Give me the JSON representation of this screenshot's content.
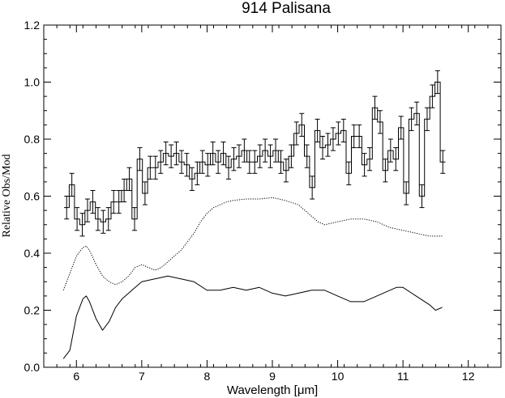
{
  "chart_data": {
    "type": "line",
    "title": "914 Palisana",
    "xlabel": "Wavelength [μm]",
    "ylabel": "Relative Obs/Mod",
    "xlim": [
      5.5,
      12.5
    ],
    "ylim": [
      0.0,
      1.2
    ],
    "xticks": [
      6,
      7,
      8,
      9,
      10,
      11,
      12
    ],
    "yticks": [
      0.0,
      0.2,
      0.4,
      0.6,
      0.8,
      1.0,
      1.2
    ],
    "ytick_labels": [
      "0.0",
      "0.2",
      "0.4",
      "0.6",
      "0.8",
      "1.0",
      "1.2"
    ],
    "grid": false,
    "series": [
      {
        "style": "histogram-with-errorbars",
        "x": [
          5.85,
          5.93,
          6.01,
          6.09,
          6.17,
          6.25,
          6.33,
          6.41,
          6.49,
          6.57,
          6.65,
          6.73,
          6.81,
          6.89,
          6.97,
          7.05,
          7.13,
          7.21,
          7.29,
          7.37,
          7.45,
          7.53,
          7.61,
          7.69,
          7.77,
          7.85,
          7.93,
          8.01,
          8.09,
          8.17,
          8.25,
          8.33,
          8.41,
          8.49,
          8.57,
          8.65,
          8.73,
          8.81,
          8.89,
          8.97,
          9.05,
          9.13,
          9.21,
          9.29,
          9.37,
          9.45,
          9.53,
          9.61,
          9.69,
          9.77,
          9.85,
          9.93,
          10.01,
          10.09,
          10.17,
          10.25,
          10.33,
          10.41,
          10.49,
          10.57,
          10.65,
          10.73,
          10.81,
          10.89,
          10.97,
          11.05,
          11.13,
          11.21,
          11.29,
          11.37,
          11.45,
          11.53,
          11.61
        ],
        "y": [
          0.56,
          0.64,
          0.52,
          0.5,
          0.55,
          0.58,
          0.52,
          0.51,
          0.52,
          0.58,
          0.58,
          0.62,
          0.66,
          0.52,
          0.73,
          0.61,
          0.7,
          0.7,
          0.72,
          0.75,
          0.74,
          0.75,
          0.72,
          0.71,
          0.66,
          0.68,
          0.72,
          0.71,
          0.75,
          0.72,
          0.75,
          0.7,
          0.73,
          0.74,
          0.76,
          0.72,
          0.72,
          0.74,
          0.76,
          0.74,
          0.76,
          0.72,
          0.69,
          0.74,
          0.82,
          0.85,
          0.74,
          0.63,
          0.83,
          0.77,
          0.78,
          0.8,
          0.82,
          0.83,
          0.68,
          0.81,
          0.81,
          0.71,
          0.73,
          0.91,
          0.86,
          0.69,
          0.76,
          0.73,
          0.84,
          0.61,
          0.87,
          0.89,
          0.6,
          0.87,
          0.95,
          1.0,
          0.72
        ],
        "err": 0.04
      },
      {
        "style": "dotted",
        "x": [
          5.8,
          5.9,
          6.0,
          6.1,
          6.15,
          6.2,
          6.3,
          6.4,
          6.5,
          6.6,
          6.7,
          6.8,
          6.9,
          7.0,
          7.1,
          7.2,
          7.3,
          7.4,
          7.5,
          7.6,
          7.7,
          7.8,
          7.9,
          8.0,
          8.1,
          8.2,
          8.3,
          8.4,
          8.6,
          8.8,
          9.0,
          9.1,
          9.2,
          9.4,
          9.6,
          9.7,
          9.8,
          10.0,
          10.2,
          10.4,
          10.6,
          10.8,
          11.0,
          11.2,
          11.4,
          11.6
        ],
        "y": [
          0.27,
          0.33,
          0.39,
          0.42,
          0.425,
          0.41,
          0.36,
          0.32,
          0.3,
          0.29,
          0.3,
          0.32,
          0.35,
          0.36,
          0.35,
          0.34,
          0.35,
          0.37,
          0.39,
          0.41,
          0.44,
          0.47,
          0.51,
          0.54,
          0.56,
          0.57,
          0.58,
          0.585,
          0.59,
          0.59,
          0.595,
          0.59,
          0.585,
          0.57,
          0.53,
          0.51,
          0.5,
          0.51,
          0.52,
          0.52,
          0.51,
          0.49,
          0.48,
          0.47,
          0.46,
          0.46
        ]
      },
      {
        "style": "solid",
        "x": [
          5.8,
          5.9,
          6.0,
          6.1,
          6.15,
          6.2,
          6.3,
          6.4,
          6.5,
          6.6,
          6.7,
          6.8,
          6.9,
          7.0,
          7.2,
          7.4,
          7.6,
          7.8,
          8.0,
          8.2,
          8.4,
          8.6,
          8.8,
          9.0,
          9.2,
          9.4,
          9.6,
          9.8,
          10.0,
          10.2,
          10.4,
          10.6,
          10.8,
          10.9,
          11.0,
          11.2,
          11.4,
          11.5,
          11.6
        ],
        "y": [
          0.03,
          0.06,
          0.18,
          0.24,
          0.25,
          0.23,
          0.17,
          0.13,
          0.16,
          0.21,
          0.24,
          0.26,
          0.28,
          0.3,
          0.31,
          0.32,
          0.31,
          0.3,
          0.27,
          0.27,
          0.28,
          0.27,
          0.28,
          0.26,
          0.25,
          0.26,
          0.27,
          0.27,
          0.25,
          0.23,
          0.23,
          0.25,
          0.27,
          0.28,
          0.28,
          0.25,
          0.22,
          0.2,
          0.21
        ]
      }
    ]
  }
}
